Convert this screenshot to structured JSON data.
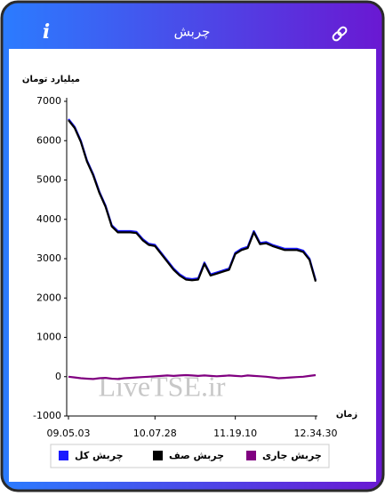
{
  "header": {
    "title": "چربش",
    "info_label": "i"
  },
  "chart_data": {
    "type": "line",
    "y_label": "میلیارد تومان",
    "x_label": "زمان",
    "watermark": "LiveTSE.ir",
    "categories": [
      "09.05.03",
      null,
      null,
      null,
      null,
      null,
      null,
      null,
      null,
      null,
      null,
      null,
      null,
      null,
      "10.07.28",
      null,
      null,
      null,
      null,
      null,
      null,
      null,
      null,
      null,
      null,
      null,
      null,
      "11.19.10",
      null,
      null,
      null,
      null,
      null,
      null,
      null,
      null,
      null,
      null,
      null,
      null,
      "12.34.30"
    ],
    "series": [
      {
        "name": "چربش کل",
        "color": "#1a1aff",
        "values": [
          6550,
          6350,
          6000,
          5500,
          5150,
          4700,
          4350,
          3850,
          3700,
          3700,
          3700,
          3680,
          3500,
          3380,
          3350,
          3150,
          2950,
          2750,
          2600,
          2500,
          2480,
          2500,
          2900,
          2600,
          2650,
          2700,
          2750,
          3150,
          3250,
          3300,
          3700,
          3400,
          3420,
          3350,
          3300,
          3250,
          3250,
          3250,
          3200,
          3000,
          2450
        ]
      },
      {
        "name": "چربش صف",
        "color": "#000000",
        "values": [
          6520,
          6320,
          5970,
          5470,
          5120,
          4670,
          4320,
          3820,
          3670,
          3670,
          3670,
          3650,
          3470,
          3350,
          3320,
          3120,
          2920,
          2720,
          2570,
          2470,
          2450,
          2470,
          2870,
          2570,
          2620,
          2670,
          2720,
          3120,
          3220,
          3270,
          3670,
          3370,
          3390,
          3320,
          3270,
          3220,
          3220,
          3220,
          3170,
          2970,
          2420
        ]
      },
      {
        "name": "چربش جاری",
        "color": "#800080",
        "values": [
          0,
          -20,
          -40,
          -50,
          -60,
          -40,
          -30,
          -50,
          -60,
          -40,
          -30,
          -20,
          -10,
          0,
          10,
          20,
          30,
          20,
          30,
          40,
          30,
          20,
          30,
          20,
          10,
          20,
          30,
          20,
          10,
          30,
          20,
          10,
          0,
          -20,
          -40,
          -30,
          -20,
          -10,
          0,
          20,
          40
        ]
      }
    ],
    "ylim": [
      -1000,
      7000
    ],
    "yticks": [
      -1000,
      0,
      1000,
      2000,
      3000,
      4000,
      5000,
      6000,
      7000
    ],
    "grid": false
  }
}
